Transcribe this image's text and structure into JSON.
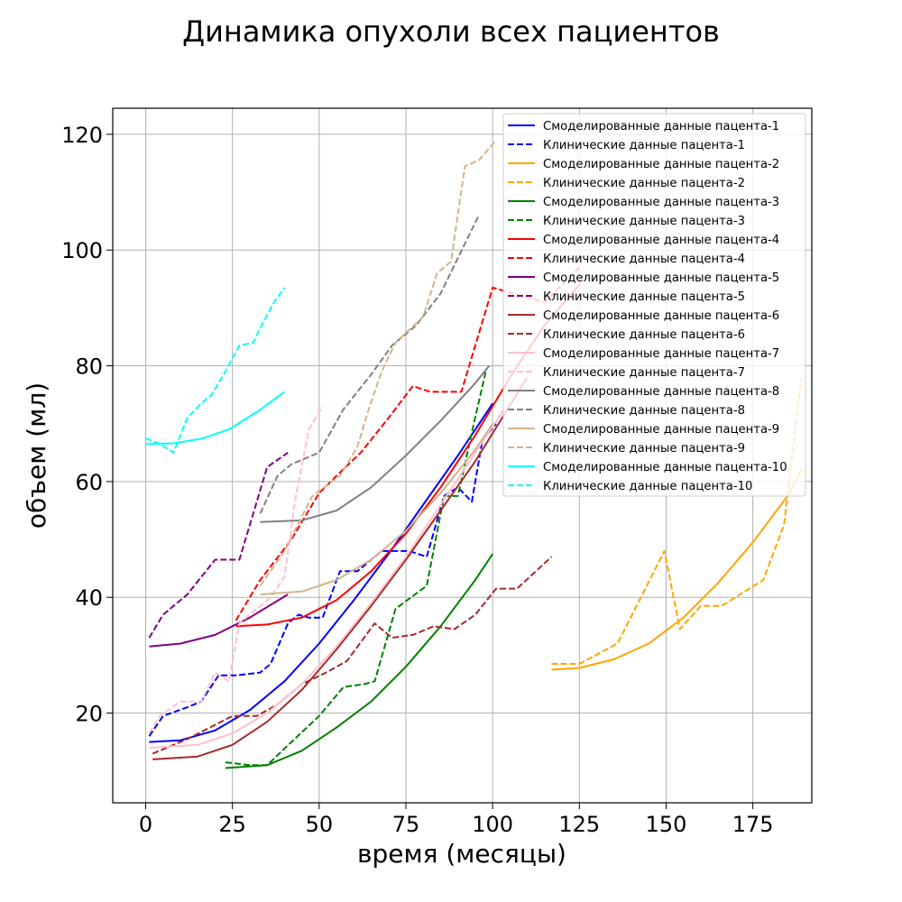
{
  "chart_data": {
    "type": "line",
    "title": "Динамика опухоли всех пациентов",
    "xlabel": "время (месяцы)",
    "ylabel": "объем (мл)",
    "xlim": [
      -9.5,
      192
    ],
    "ylim": [
      4.5,
      124.5
    ],
    "xticks": [
      0,
      25,
      50,
      75,
      100,
      125,
      150,
      175
    ],
    "yticks": [
      20,
      40,
      60,
      80,
      100,
      120
    ],
    "grid": true,
    "legend_position": "top-right",
    "series": [
      {
        "name": "Смоделированные данные пацента-1",
        "color": "#0000ff",
        "dash": false,
        "x": [
          1,
          10,
          20,
          30,
          40,
          50,
          60,
          70,
          80,
          90,
          100
        ],
        "y": [
          15,
          15.3,
          17,
          20.5,
          25.5,
          32,
          39.5,
          47.5,
          56,
          64.5,
          73.5
        ]
      },
      {
        "name": "Клинические данные пацента-1",
        "color": "#0000ff",
        "dash": true,
        "x": [
          1,
          5,
          12,
          16,
          21,
          26,
          33,
          36,
          41,
          44,
          47,
          51,
          56,
          61,
          68,
          72,
          76,
          81,
          86,
          90,
          94,
          97,
          101
        ],
        "y": [
          16,
          19.5,
          21,
          22,
          26.5,
          26.5,
          27,
          28.5,
          35.5,
          37,
          36.5,
          36.5,
          44.5,
          44.5,
          48,
          48,
          48,
          47,
          57.5,
          59,
          56.5,
          67,
          70
        ]
      },
      {
        "name": "Смоделированные данные пацента-2",
        "color": "#ffa500",
        "dash": false,
        "x": [
          117,
          125,
          135,
          145,
          155,
          165,
          175,
          185,
          189
        ],
        "y": [
          27.5,
          27.8,
          29.3,
          32,
          36.5,
          42.5,
          49.5,
          57.5,
          62
        ]
      },
      {
        "name": "Клинические данные пацента-2",
        "color": "#ffa500",
        "dash": true,
        "x": [
          117,
          125,
          136,
          149.5,
          154,
          160,
          166,
          178,
          184,
          189
        ],
        "y": [
          28.5,
          28.5,
          32,
          48,
          34.5,
          38.5,
          38.5,
          43,
          52.5,
          78
        ]
      },
      {
        "name": "Смоделированные данные пацента-3",
        "color": "#008000",
        "dash": false,
        "x": [
          23,
          35,
          45,
          55,
          65,
          75,
          85,
          95,
          100
        ],
        "y": [
          10.5,
          11,
          13.5,
          17.5,
          22,
          28,
          35,
          43,
          47.5
        ]
      },
      {
        "name": "Клинические данные пацента-3",
        "color": "#008000",
        "dash": true,
        "x": [
          23,
          30,
          35,
          42,
          50,
          57,
          63,
          66,
          72,
          81,
          86,
          90,
          94,
          98
        ],
        "y": [
          11.5,
          11,
          11,
          15,
          19.5,
          24.5,
          25,
          25.5,
          38,
          42,
          57.5,
          57.5,
          68.5,
          79
        ]
      },
      {
        "name": "Смоделированные данные пацента-4",
        "color": "#ff0000",
        "dash": false,
        "x": [
          26,
          35,
          45,
          55,
          65,
          75,
          85,
          95,
          105,
          115,
          125
        ],
        "y": [
          35,
          35.3,
          36.5,
          39.5,
          44.5,
          51,
          59,
          68,
          78,
          87,
          94
        ]
      },
      {
        "name": "Клинические данные пацента-4",
        "color": "#ff0000",
        "dash": true,
        "x": [
          26,
          33,
          42,
          50,
          55,
          62,
          70,
          77,
          82,
          87,
          91,
          100,
          115,
          125
        ],
        "y": [
          36,
          43,
          50,
          58,
          61,
          65,
          71,
          76.5,
          75.5,
          75.5,
          75.5,
          93.5,
          91,
          97
        ]
      },
      {
        "name": "Смоделированные данные пацента-5",
        "color": "#800080",
        "dash": false,
        "x": [
          1,
          10,
          20,
          30,
          41
        ],
        "y": [
          31.5,
          32,
          33.5,
          36.5,
          40.5
        ]
      },
      {
        "name": "Клинические данные пацента-5",
        "color": "#800080",
        "dash": true,
        "x": [
          1,
          5,
          12,
          20,
          27,
          35,
          41
        ],
        "y": [
          33,
          37,
          40.5,
          46.5,
          46.5,
          62.5,
          65
        ]
      },
      {
        "name": "Смоделированные данные пацента-6",
        "color": "#a52a2a",
        "dash": false,
        "x": [
          2,
          15,
          25,
          35,
          45,
          55,
          65,
          75,
          85,
          95,
          110
        ],
        "y": [
          12,
          12.5,
          14.5,
          18.5,
          24,
          31,
          38.5,
          46.5,
          55,
          63.5,
          78
        ]
      },
      {
        "name": "Клинические данные пацента-6",
        "color": "#a52a2a",
        "dash": true,
        "x": [
          2,
          12,
          25,
          32,
          38,
          45,
          52,
          58,
          66,
          71,
          77,
          83,
          89,
          95,
          101,
          107,
          117
        ],
        "y": [
          13,
          15.5,
          19.5,
          19.5,
          21.5,
          25,
          27,
          29,
          35.5,
          33,
          33.5,
          35,
          34.5,
          37,
          41.5,
          41.5,
          47
        ]
      },
      {
        "name": "Смоделированные данные пацента-7",
        "color": "#ffc0cb",
        "dash": false,
        "x": [
          1,
          15,
          25,
          35,
          45,
          55,
          65,
          75,
          85,
          95,
          105,
          117
        ],
        "y": [
          14,
          14.5,
          16.5,
          20,
          25,
          31.5,
          39,
          47,
          56,
          65,
          74,
          84.5
        ]
      },
      {
        "name": "Клинические данные пацента-7",
        "color": "#ffc0cb",
        "dash": true,
        "x": [
          1,
          4,
          10,
          16,
          20,
          24,
          27,
          30,
          36,
          40,
          43,
          47,
          51
        ],
        "y": [
          16.5,
          19.5,
          22,
          22,
          27,
          25.5,
          35.5,
          37,
          40,
          43.5,
          56.5,
          69,
          73
        ]
      },
      {
        "name": "Смоделированные данные пацента-8",
        "color": "#808080",
        "dash": false,
        "x": [
          33,
          45,
          55,
          65,
          75,
          85,
          95,
          99
        ],
        "y": [
          53,
          53.3,
          55,
          59,
          64.5,
          70.5,
          77,
          80
        ]
      },
      {
        "name": "Клинические данные пацента-8",
        "color": "#808080",
        "dash": true,
        "x": [
          33,
          38,
          42,
          50,
          57,
          65,
          71,
          78,
          85,
          96
        ],
        "y": [
          54.5,
          61,
          63,
          65,
          72.5,
          78.5,
          83.5,
          87,
          92.5,
          106
        ]
      },
      {
        "name": "Смоделированные данные пацента-9",
        "color": "#d2b48c",
        "dash": false,
        "x": [
          33,
          45,
          55,
          65,
          75,
          85,
          95,
          100
        ],
        "y": [
          40.5,
          41,
          43,
          46.5,
          51.5,
          58,
          65.5,
          70
        ]
      },
      {
        "name": "Клинические данные пацента-9",
        "color": "#d2b48c",
        "dash": true,
        "x": [
          33,
          40,
          48,
          56,
          61,
          64,
          68,
          72,
          80,
          84,
          88,
          92,
          96,
          101
        ],
        "y": [
          42,
          48,
          57.5,
          61,
          66,
          72,
          79,
          84,
          88.5,
          96,
          98,
          114.5,
          115.5,
          119
        ]
      },
      {
        "name": "Смоделированные данные пацента-10",
        "color": "#00ffff",
        "dash": false,
        "x": [
          0,
          8,
          16,
          24,
          32,
          40
        ],
        "y": [
          66.5,
          66.6,
          67.4,
          69,
          72,
          75.5
        ]
      },
      {
        "name": "Клинические данные пацента-10",
        "color": "#00ffff",
        "dash": true,
        "x": [
          0,
          4,
          8,
          12,
          16,
          19,
          22,
          27,
          31,
          33,
          37,
          40
        ],
        "y": [
          67.5,
          66.5,
          65,
          71,
          73.5,
          75,
          78,
          83.5,
          84,
          86.5,
          91,
          93.5
        ]
      }
    ]
  }
}
